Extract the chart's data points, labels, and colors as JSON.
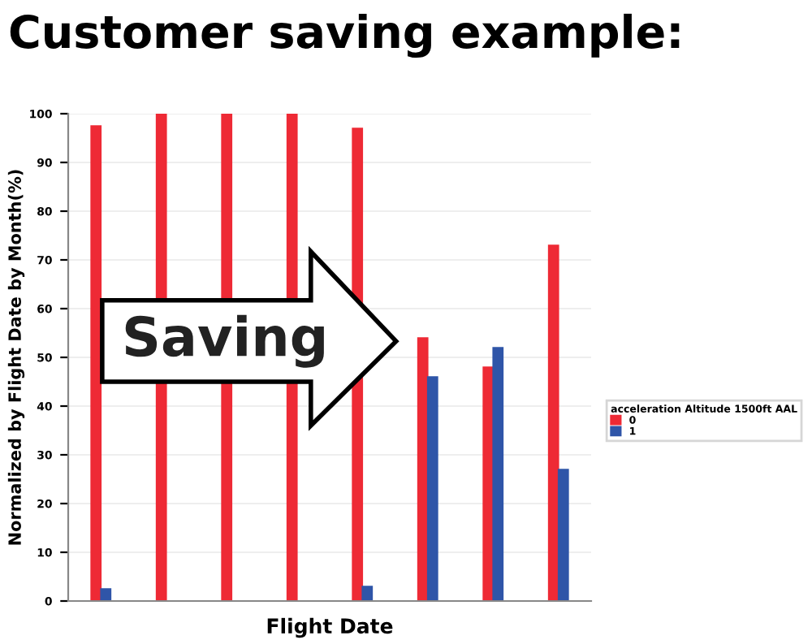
{
  "chart_data": {
    "type": "bar",
    "title": "Customer saving example:",
    "xlabel": "Flight Date",
    "ylabel": "Normalized by Flight Date by Month(%)",
    "legend_title": "acceleration Altitude 1500ft AAL",
    "categories": [
      null,
      null,
      null,
      null,
      null,
      null,
      null,
      null
    ],
    "series": [
      {
        "name": "0",
        "color": "#ee2a35",
        "values": [
          97.5,
          100,
          100,
          100,
          97,
          54,
          48,
          73
        ]
      },
      {
        "name": "1",
        "color": "#2f55a8",
        "values": [
          2.5,
          0,
          0,
          0,
          3,
          46,
          52,
          27
        ]
      }
    ],
    "ylim": [
      0,
      100
    ],
    "yticks": [
      0,
      10,
      20,
      30,
      40,
      50,
      60,
      70,
      80,
      90,
      100
    ],
    "grid": "y",
    "legend": "right",
    "annotations": [
      "Saving"
    ]
  }
}
